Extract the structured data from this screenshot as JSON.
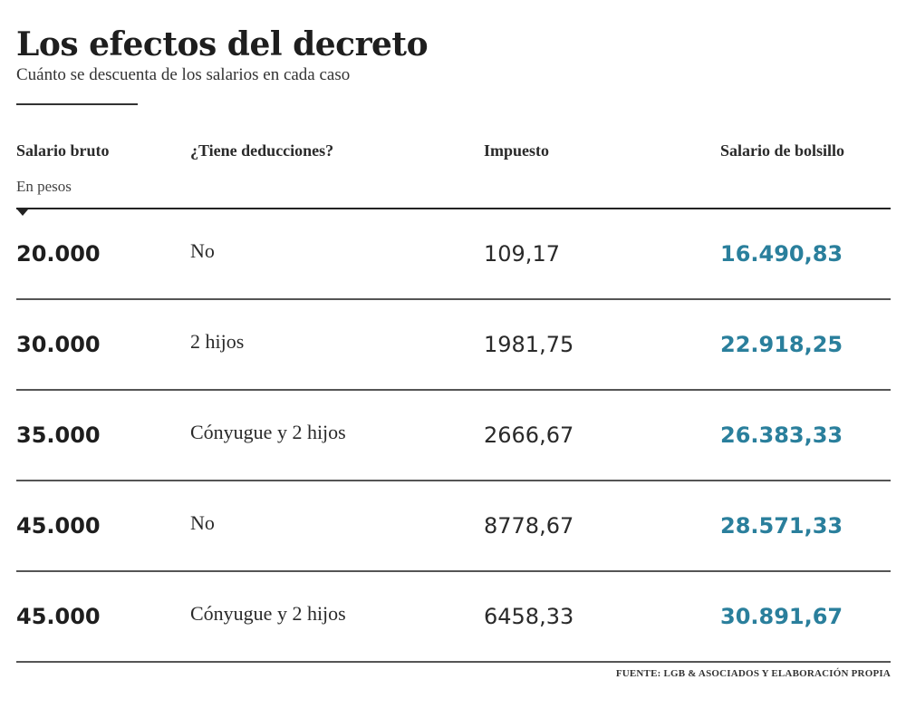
{
  "title": "Los efectos del decreto",
  "subtitle": "Cuánto se descuenta de los salarios en cada caso",
  "columns": {
    "salario_bruto": "Salario bruto",
    "deducciones": "¿Tiene deducciones?",
    "impuesto": "Impuesto",
    "bolsillo": "Salario de bolsillo"
  },
  "unit_note": "En pesos",
  "rows": [
    {
      "salario_bruto": "20.000",
      "deducciones": "No",
      "impuesto": "109,17",
      "bolsillo": "16.490,83"
    },
    {
      "salario_bruto": "30.000",
      "deducciones": "2 hijos",
      "impuesto": "1981,75",
      "bolsillo": "22.918,25"
    },
    {
      "salario_bruto": "35.000",
      "deducciones": "Cónyugue y 2 hijos",
      "impuesto": "2666,67",
      "bolsillo": "26.383,33"
    },
    {
      "salario_bruto": "45.000",
      "deducciones": "No",
      "impuesto": "8778,67",
      "bolsillo": "28.571,33"
    },
    {
      "salario_bruto": "45.000",
      "deducciones": "Cónyugue y 2 hijos",
      "impuesto": "6458,33",
      "bolsillo": "30.891,67"
    }
  ],
  "source": "FUENTE: LGB & ASOCIADOS Y ELABORACIÓN PROPIA",
  "colors": {
    "accent": "#2a7f9c",
    "text": "#222222",
    "background": "#ffffff"
  }
}
